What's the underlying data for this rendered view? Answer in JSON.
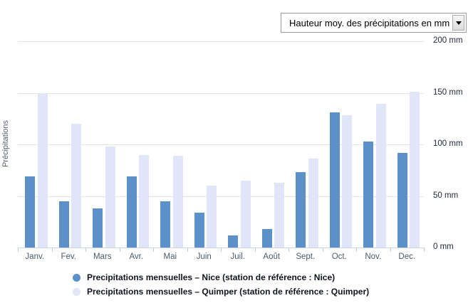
{
  "controls": {
    "metric_dropdown": {
      "value": "Hauteur moy. des précipitations en mm"
    }
  },
  "chart_data": {
    "type": "bar",
    "title": "",
    "xlabel": "",
    "ylabel": "Précipitations",
    "ylim": [
      0,
      200
    ],
    "grid": true,
    "legend_position": "bottom",
    "y_tick_labels": [
      "0 mm",
      "50 mm",
      "100 mm",
      "150 mm",
      "200 mm"
    ],
    "y_tick_values": [
      0,
      50,
      100,
      150,
      200
    ],
    "categories": [
      "Janv.",
      "Fev.",
      "Mars",
      "Avr.",
      "Mai",
      "Juin",
      "Juil.",
      "Août",
      "Sept.",
      "Oct.",
      "Nov.",
      "Dec."
    ],
    "series": [
      {
        "key": "nice",
        "name": "Precipitations mensuelles – Nice (station de référence : Nice)",
        "color": "#5b91c8",
        "values": [
          69,
          45,
          38,
          69,
          45,
          34,
          12,
          18,
          73,
          131,
          103,
          92
        ]
      },
      {
        "key": "quimper",
        "name": "Precipitations mensuelles – Quimper (station de référence : Quimper)",
        "color": "#e0e5f7",
        "values": [
          150,
          120,
          98,
          90,
          89,
          60,
          65,
          63,
          86,
          128,
          139,
          151
        ]
      }
    ]
  }
}
